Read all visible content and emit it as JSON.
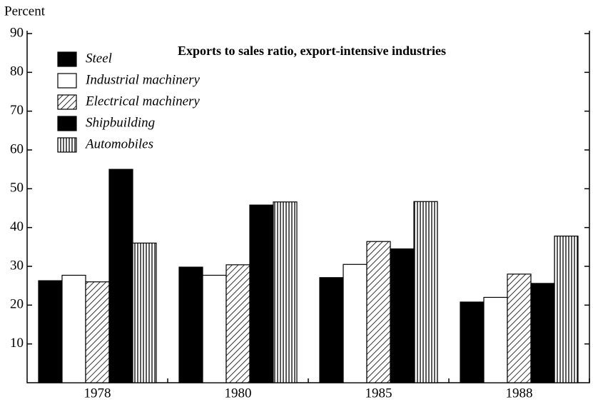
{
  "chart_data": {
    "type": "bar",
    "title": "Exports to sales ratio, export-intensive industries",
    "y_label": "Percent",
    "categories": [
      "1978",
      "1980",
      "1985",
      "1988"
    ],
    "series": [
      {
        "name": "Steel",
        "color": "#000000",
        "hatch": "solid",
        "values": [
          26.3,
          29.8,
          27.1,
          20.8
        ]
      },
      {
        "name": "Industrial machinery",
        "color": "#ffffff",
        "hatch": "solid",
        "values": [
          27.7,
          27.7,
          30.5,
          22.0
        ]
      },
      {
        "name": "Electrical machinery",
        "color": "#000000",
        "hatch": "diagonal",
        "values": [
          26.0,
          30.4,
          36.4,
          28.0
        ]
      },
      {
        "name": "Shipbuilding",
        "color": "#000000",
        "hatch": "solid",
        "values": [
          55.0,
          45.8,
          34.5,
          25.6
        ]
      },
      {
        "name": "Automobiles",
        "color": "#000000",
        "hatch": "vertical",
        "values": [
          36.0,
          46.6,
          46.7,
          37.8
        ]
      }
    ],
    "ylim": [
      0,
      90
    ],
    "yticks": [
      10,
      20,
      30,
      40,
      50,
      60,
      70,
      80,
      90
    ],
    "legend": "upper left",
    "grid": false
  }
}
